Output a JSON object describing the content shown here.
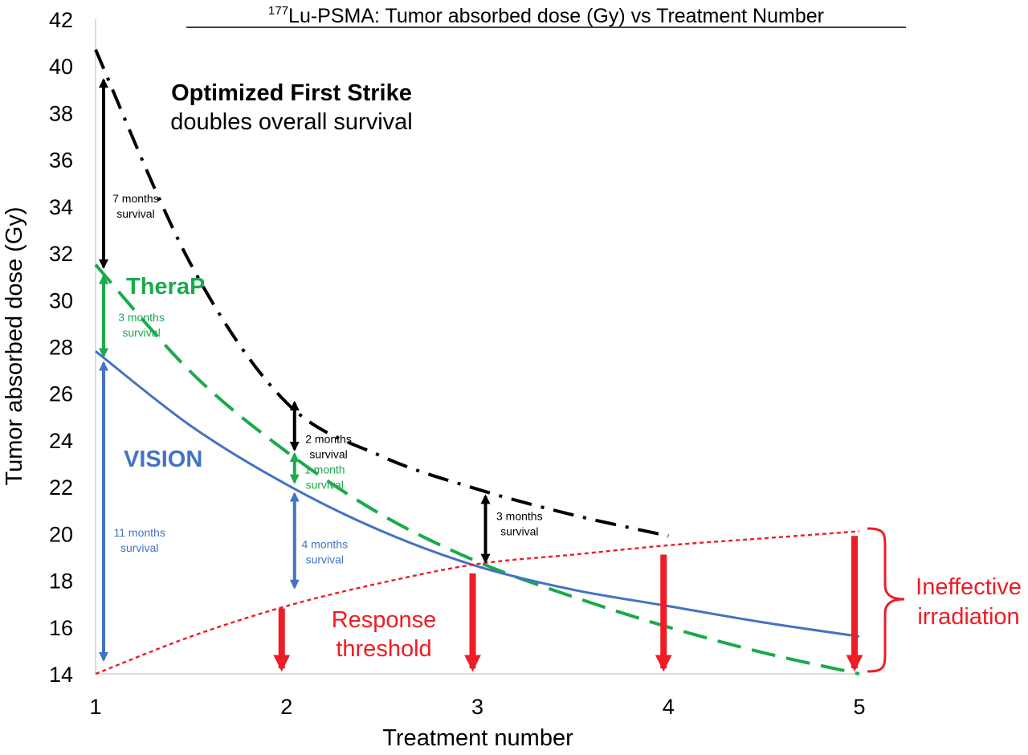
{
  "chart_data": {
    "type": "line",
    "title": {
      "superscript": "177",
      "main": "Lu-PSMA: Tumor absorbed dose (Gy) vs Treatment Number"
    },
    "xlabel": "Treatment number",
    "ylabel": "Tumor absorbed dose (Gy)",
    "xlim": [
      1,
      5
    ],
    "ylim": [
      14,
      42
    ],
    "x_ticks": [
      1,
      2,
      3,
      4,
      5
    ],
    "y_ticks": [
      14,
      16,
      18,
      20,
      22,
      24,
      26,
      28,
      30,
      32,
      34,
      36,
      38,
      40,
      42
    ],
    "grid": false,
    "series": [
      {
        "id": "optimized",
        "color": "#000000",
        "style": "dash-dot",
        "x": [
          1,
          1.5,
          2,
          2.5,
          3,
          3.5,
          4
        ],
        "y": [
          40.7,
          31.5,
          25.6,
          23.3,
          21.9,
          20.8,
          19.9
        ]
      },
      {
        "id": "therap",
        "color": "#1aaa4b",
        "style": "dashed",
        "x": [
          1,
          1.5,
          2,
          2.5,
          3,
          3.5,
          4,
          4.5,
          5
        ],
        "y": [
          31.5,
          26.9,
          23.5,
          20.8,
          18.8,
          17.3,
          16.0,
          14.9,
          14.0
        ]
      },
      {
        "id": "vision",
        "color": "#4472c4",
        "style": "solid",
        "x": [
          1,
          1.5,
          2,
          2.5,
          3,
          3.5,
          4,
          4.5,
          5
        ],
        "y": [
          27.8,
          24.6,
          22.1,
          20.1,
          18.6,
          17.6,
          16.9,
          16.2,
          15.6
        ]
      },
      {
        "id": "threshold",
        "color": "#ee1c25",
        "style": "dotted",
        "x": [
          1,
          1.5,
          2,
          2.5,
          3,
          3.5,
          4,
          4.5,
          5
        ],
        "y": [
          14.0,
          15.6,
          16.9,
          17.9,
          18.7,
          19.1,
          19.5,
          19.8,
          20.1
        ]
      }
    ],
    "double_arrows": [
      {
        "x": 1,
        "y1": 31.4,
        "y2": 39.4,
        "color": "#000000",
        "lines": [
          "7 months",
          "survival"
        ],
        "label_x": 1.21,
        "label_y": 33.9
      },
      {
        "x": 1,
        "y1": 27.6,
        "y2": 31.0,
        "color": "#1aaa4b",
        "lines": [
          "3 months",
          "survival"
        ],
        "label_x": 1.24,
        "label_y": 28.8
      },
      {
        "x": 1,
        "y1": 14.6,
        "y2": 27.3,
        "color": "#4472c4",
        "lines": [
          "11 months",
          "survival"
        ],
        "label_x": 1.23,
        "label_y": 19.6
      },
      {
        "x": 2,
        "y1": 23.6,
        "y2": 25.6,
        "color": "#000000",
        "lines": [
          "2 months",
          "survival"
        ],
        "label_x": 2.22,
        "label_y": 23.6
      },
      {
        "x": 2,
        "y1": 22.2,
        "y2": 23.4,
        "color": "#1aaa4b",
        "lines": [
          "1 month",
          "survival"
        ],
        "label_x": 2.2,
        "label_y": 22.3
      },
      {
        "x": 2,
        "y1": 17.7,
        "y2": 21.7,
        "color": "#4472c4",
        "lines": [
          "4 months",
          "survival"
        ],
        "label_x": 2.2,
        "label_y": 19.1
      },
      {
        "x": 3,
        "y1": 18.8,
        "y2": 21.6,
        "color": "#000000",
        "lines": [
          "3 months",
          "survival"
        ],
        "label_x": 3.22,
        "label_y": 20.3
      }
    ],
    "down_arrows": [
      {
        "x": 2,
        "y_top": 16.8,
        "y_bottom": 14.1
      },
      {
        "x": 3,
        "y_top": 18.3,
        "y_bottom": 14.1
      },
      {
        "x": 4,
        "y_top": 19.1,
        "y_bottom": 14.1
      },
      {
        "x": 5,
        "y_top": 19.9,
        "y_bottom": 14.1
      }
    ],
    "annotations": {
      "optimized_bold": "Optimized First Strike",
      "optimized_sub": "doubles overall survival",
      "therap": "TheraP",
      "vision": "VISION",
      "response_line1": "Response",
      "response_line2": "threshold",
      "ineffective_line1": "Ineffective",
      "ineffective_line2": "irradiation"
    }
  }
}
